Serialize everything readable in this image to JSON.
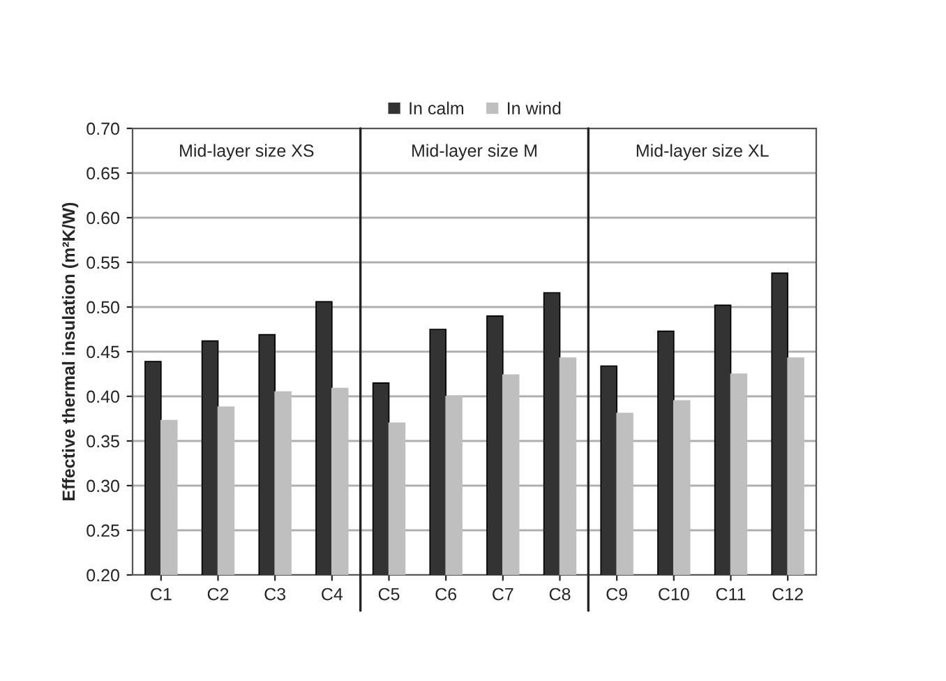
{
  "chart_data": {
    "type": "bar",
    "ylabel": "Effective thermal insulation (m²K/W)",
    "categories": [
      "C1",
      "C2",
      "C3",
      "C4",
      "C5",
      "C6",
      "C7",
      "C8",
      "C9",
      "C10",
      "C11",
      "C12"
    ],
    "series": [
      {
        "name": "In calm",
        "color": "#333333",
        "values": [
          0.439,
          0.462,
          0.469,
          0.506,
          0.415,
          0.475,
          0.49,
          0.516,
          0.434,
          0.473,
          0.502,
          0.538
        ]
      },
      {
        "name": "In wind",
        "color": "#bfbfbf",
        "values": [
          0.373,
          0.388,
          0.405,
          0.409,
          0.37,
          0.4,
          0.424,
          0.443,
          0.381,
          0.395,
          0.425,
          0.443
        ]
      }
    ],
    "ylim": [
      0.2,
      0.7
    ],
    "yticks": [
      {
        "value": 0.2,
        "label": "0.20"
      },
      {
        "value": 0.25,
        "label": "0.25"
      },
      {
        "value": 0.3,
        "label": "0.30"
      },
      {
        "value": 0.35,
        "label": "0.35"
      },
      {
        "value": 0.4,
        "label": "0.40"
      },
      {
        "value": 0.45,
        "label": "0.45"
      },
      {
        "value": 0.5,
        "label": "0.50"
      },
      {
        "value": 0.55,
        "label": "0.55"
      },
      {
        "value": 0.6,
        "label": "0.60"
      },
      {
        "value": 0.65,
        "label": "0.65"
      },
      {
        "value": 0.7,
        "label": "0.70"
      }
    ],
    "annotations": [
      "Mid-layer size XS",
      "Mid-layer size M",
      "Mid-layer size XL"
    ],
    "grid": "y",
    "legend": "top"
  }
}
